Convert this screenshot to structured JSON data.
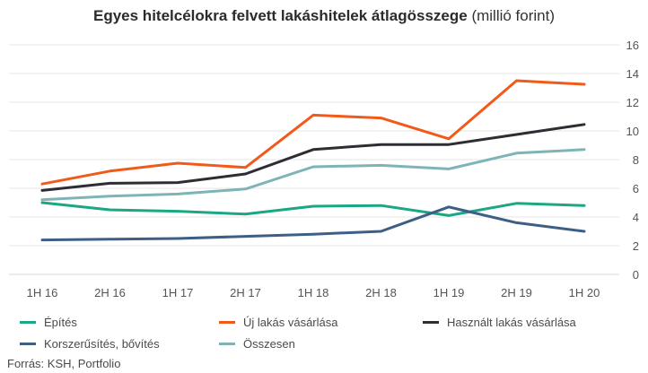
{
  "title_bold": "Egyes hitelcélokra felvett lakáshitelek átlagösszege",
  "title_normal": "(millió forint)",
  "source": "Forrás: KSH, Portfolio",
  "chart_data": {
    "type": "line",
    "x": [
      "1H 16",
      "2H 16",
      "1H 17",
      "2H 17",
      "1H 18",
      "2H 18",
      "1H 19",
      "2H 19",
      "1H 20"
    ],
    "ylim": [
      0,
      16
    ],
    "yticks": [
      0,
      2,
      4,
      6,
      8,
      10,
      12,
      14,
      16
    ],
    "y_axis_side": "right",
    "grid": true,
    "legend_position": "bottom",
    "series": [
      {
        "name": "Építés",
        "color": "#1aa784",
        "values": [
          5.0,
          4.5,
          4.4,
          4.2,
          4.75,
          4.8,
          4.1,
          4.95,
          4.8
        ]
      },
      {
        "name": "Új lakás vásárlása",
        "color": "#f05a1a",
        "values": [
          6.3,
          7.2,
          7.75,
          7.45,
          11.1,
          10.9,
          9.45,
          13.5,
          13.25
        ]
      },
      {
        "name": "Használt lakás vásárlása",
        "color": "#2d2d33",
        "values": [
          5.85,
          6.35,
          6.4,
          7.0,
          8.7,
          9.05,
          9.05,
          9.75,
          10.45
        ]
      },
      {
        "name": "Korszerűsítés, bővítés",
        "color": "#3d5f86",
        "values": [
          2.4,
          2.45,
          2.5,
          2.65,
          2.8,
          3.0,
          4.7,
          3.6,
          3.0
        ]
      },
      {
        "name": "Összesen",
        "color": "#7fb4b6",
        "values": [
          5.2,
          5.45,
          5.6,
          5.95,
          7.5,
          7.6,
          7.35,
          8.45,
          8.7
        ]
      }
    ]
  }
}
